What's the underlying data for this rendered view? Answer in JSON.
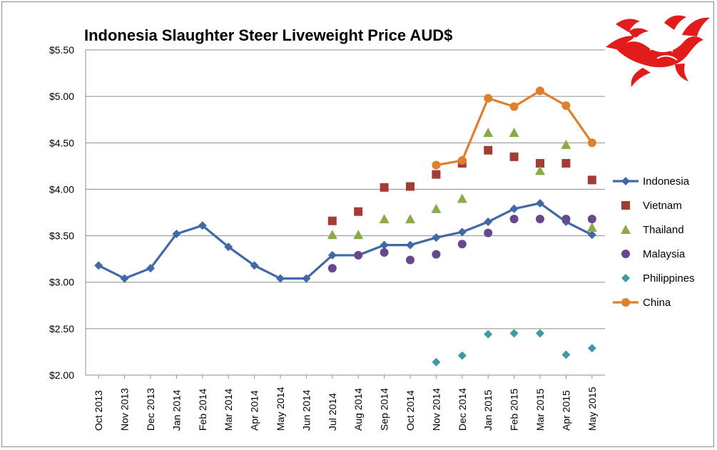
{
  "chart_data": {
    "type": "line",
    "title": "Indonesia Slaughter Steer Liveweight Price AUD$",
    "xlabel": "",
    "ylabel": "",
    "ylim": [
      2.0,
      5.5
    ],
    "ytick_step": 0.5,
    "grid": true,
    "legend": "right",
    "categories": [
      "Oct 2013",
      "Nov 2013",
      "Dec 2013",
      "Jan 2014",
      "Feb 2014",
      "Mar 2014",
      "Apr 2014",
      "May 2014",
      "Jun 2014",
      "Jul 2014",
      "Aug 2014",
      "Sep 2014",
      "Oct 2014",
      "Nov 2014",
      "Dec 2014",
      "Jan 2015",
      "Feb 2015",
      "Mar 2015",
      "Apr 2015",
      "May 2015"
    ],
    "yticks": [
      "$2.00",
      "$2.50",
      "$3.00",
      "$3.50",
      "$4.00",
      "$4.50",
      "$5.00",
      "$5.50"
    ],
    "series": [
      {
        "name": "Indonesia",
        "style": "line",
        "marker": "diamond",
        "color": "#4169a8",
        "values": [
          3.18,
          3.04,
          3.15,
          3.52,
          3.61,
          3.38,
          3.18,
          3.04,
          3.04,
          3.29,
          3.29,
          3.4,
          3.4,
          3.48,
          3.54,
          3.65,
          3.79,
          3.85,
          3.65,
          3.51
        ]
      },
      {
        "name": "Vietnam",
        "style": "markers",
        "marker": "square",
        "color": "#a33b36",
        "values": [
          null,
          null,
          null,
          null,
          null,
          null,
          null,
          null,
          null,
          3.66,
          3.76,
          4.02,
          4.03,
          4.16,
          4.28,
          4.42,
          4.35,
          4.28,
          4.28,
          4.1
        ]
      },
      {
        "name": "Thailand",
        "style": "markers",
        "marker": "triangle",
        "color": "#8aab45",
        "values": [
          null,
          null,
          null,
          null,
          null,
          null,
          null,
          null,
          null,
          3.51,
          3.51,
          3.68,
          3.68,
          3.79,
          3.9,
          4.61,
          4.61,
          4.2,
          4.48,
          3.59
        ]
      },
      {
        "name": "Malaysia",
        "style": "markers",
        "marker": "circle",
        "color": "#67478e",
        "values": [
          null,
          null,
          null,
          null,
          null,
          null,
          null,
          null,
          null,
          3.15,
          3.29,
          3.32,
          3.24,
          3.3,
          3.41,
          3.53,
          3.68,
          3.68,
          3.68,
          3.68
        ]
      },
      {
        "name": "Philippines",
        "style": "markers",
        "marker": "diamond",
        "color": "#3f9aa8",
        "values": [
          null,
          null,
          null,
          null,
          null,
          null,
          null,
          null,
          null,
          null,
          null,
          null,
          null,
          2.14,
          2.21,
          2.44,
          2.45,
          2.45,
          2.22,
          2.29
        ]
      },
      {
        "name": "China",
        "style": "line",
        "marker": "circle",
        "color": "#e07f2b",
        "values": [
          null,
          null,
          null,
          null,
          null,
          null,
          null,
          null,
          null,
          null,
          null,
          null,
          null,
          4.26,
          4.31,
          4.98,
          4.89,
          5.06,
          4.9,
          4.5
        ]
      }
    ]
  },
  "decoration": {
    "dragon_icon": "dragon-icon",
    "dragon_color": "#e21b1b"
  }
}
